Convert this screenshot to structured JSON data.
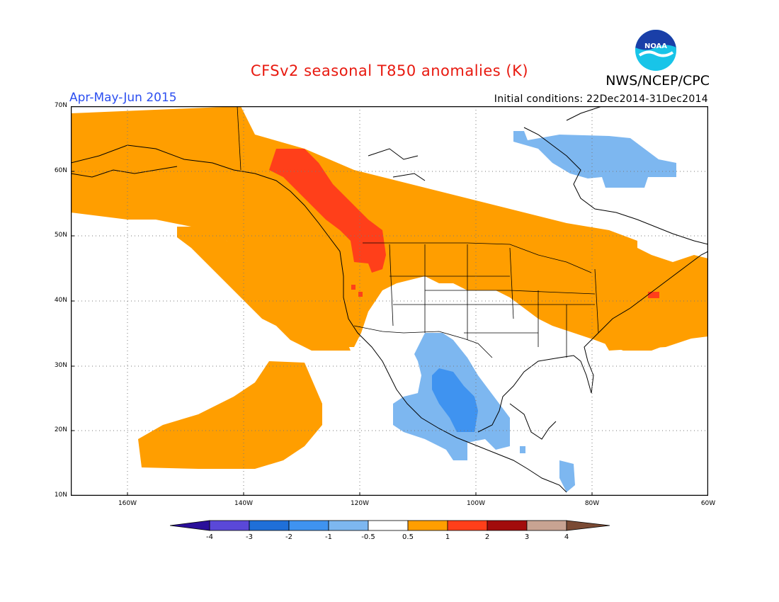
{
  "title": "CFSv2 seasonal T850 anomalies (K)",
  "agency": "NWS/NCEP/CPC",
  "logo_text": "NOAA",
  "period": "Apr-May-Jun 2015",
  "initial_conditions": "Initial conditions: 22Dec2014-31Dec2014",
  "lat_labels": [
    "70N",
    "60N",
    "50N",
    "40N",
    "30N",
    "20N",
    "10N"
  ],
  "lon_labels": [
    "160W",
    "140W",
    "120W",
    "100W",
    "80W",
    "60W"
  ],
  "colorbar": {
    "labels": [
      "-4",
      "-3",
      "-2",
      "-1",
      "-0.5",
      "0.5",
      "1",
      "2",
      "3",
      "4"
    ],
    "colors": [
      "#2a0f9a",
      "#5a48d8",
      "#1f6fd8",
      "#3f93f0",
      "#7db7f0",
      "#ffffff",
      "#ff9e00",
      "#ff3f1a",
      "#a20c0c",
      "#c8a392",
      "#7a4a34"
    ]
  },
  "colors": {
    "positive_05_1": "#ff9e00",
    "positive_1_2": "#ff3f1a",
    "negative_05_1": "#7db7f0",
    "negative_1_2": "#3f93f0"
  }
}
